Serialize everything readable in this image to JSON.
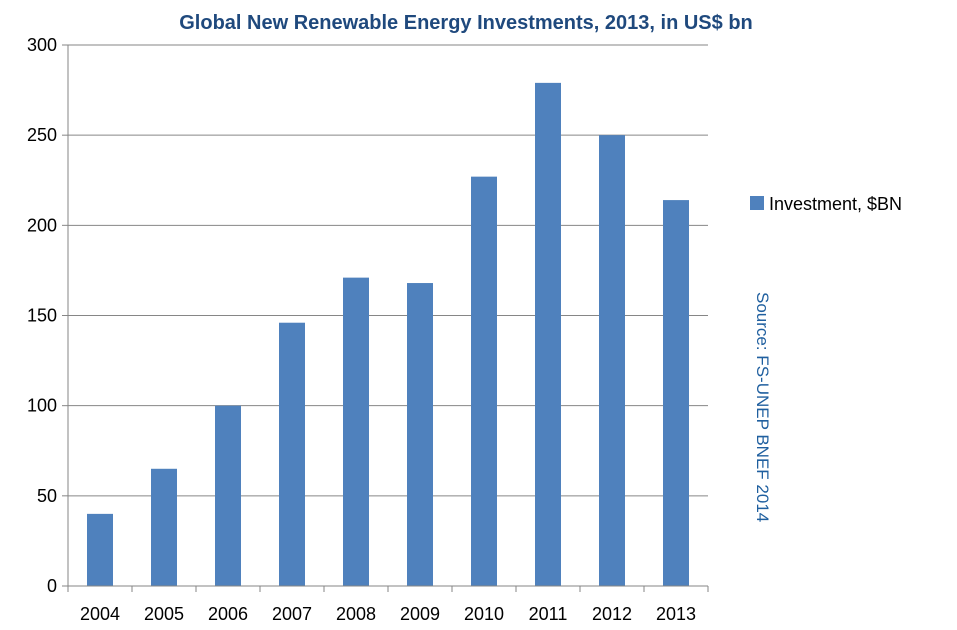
{
  "chart_data": {
    "type": "bar",
    "title": "Global New Renewable Energy Investments, 2013, in US$ bn",
    "categories": [
      "2004",
      "2005",
      "2006",
      "2007",
      "2008",
      "2009",
      "2010",
      "2011",
      "2012",
      "2013"
    ],
    "series": [
      {
        "name": "Investment, $BN",
        "values": [
          40,
          65,
          100,
          146,
          171,
          168,
          227,
          279,
          250,
          214
        ]
      }
    ],
    "yticks": [
      "0",
      "50",
      "100",
      "150",
      "200",
      "250",
      "300"
    ],
    "ylim": [
      0,
      300
    ],
    "grid": true,
    "legend_position": "right",
    "source_note": "Source: FS-UNEP BNEF 2014",
    "colors": {
      "bar": "#4F81BD",
      "title": "#1F497D",
      "source": "#1F5F9F",
      "grid": "#868686"
    }
  }
}
